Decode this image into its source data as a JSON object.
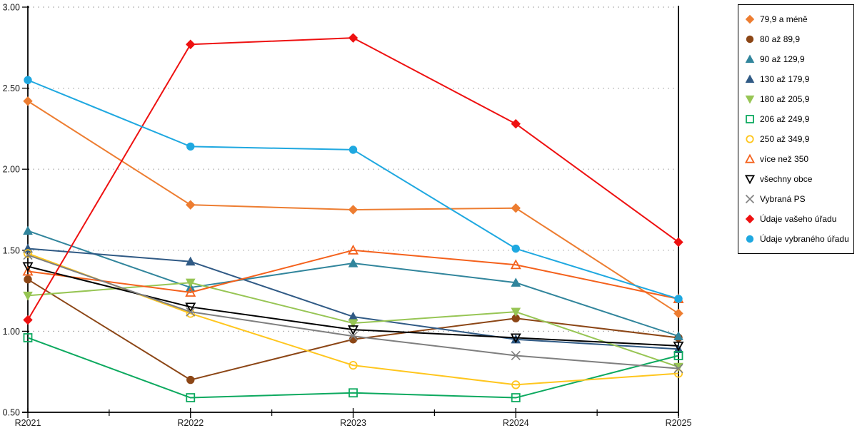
{
  "chart_data": {
    "type": "line",
    "title": "",
    "xlabel": "",
    "ylabel": "",
    "categories": [
      "R2021",
      "R2022",
      "R2023",
      "R2024",
      "R2025"
    ],
    "ylim": [
      0.5,
      3.0
    ],
    "ytick_step": 0.5,
    "ytick_labels": [
      "0.50",
      "1.00",
      "1.50",
      "2.00",
      "2.50",
      "3.00"
    ],
    "grid": "horizontal-dashed",
    "grid_color": "#b8b8b8",
    "axis_color": "#000000",
    "legend_position": "top-right",
    "series": [
      {
        "name": "79,9 a méně",
        "marker": "diamond",
        "style": "filled",
        "color": "#ED7D31",
        "values": [
          2.42,
          1.78,
          1.75,
          1.76,
          1.11
        ]
      },
      {
        "name": "80 až 89,9",
        "marker": "circle",
        "style": "filled",
        "color": "#8C4616",
        "values": [
          1.32,
          0.7,
          0.95,
          1.08,
          0.96
        ]
      },
      {
        "name": "90 až 129,9",
        "marker": "triangle-up",
        "style": "filled",
        "color": "#31859C",
        "values": [
          1.62,
          1.27,
          1.42,
          1.3,
          0.97
        ]
      },
      {
        "name": "130 až 179,9",
        "marker": "triangle-up",
        "style": "filled",
        "color": "#305A85",
        "values": [
          1.51,
          1.43,
          1.09,
          0.95,
          0.89
        ]
      },
      {
        "name": "180 až 205,9",
        "marker": "triangle-down",
        "style": "filled",
        "color": "#97C554",
        "values": [
          1.22,
          1.3,
          1.05,
          1.12,
          0.78
        ]
      },
      {
        "name": "206 až 249,9",
        "marker": "square",
        "style": "open",
        "color": "#0CA95F",
        "values": [
          0.96,
          0.59,
          0.62,
          0.59,
          0.85
        ]
      },
      {
        "name": "250 až 349,9",
        "marker": "circle",
        "style": "open",
        "color": "#FFC61E",
        "values": [
          1.48,
          1.11,
          0.79,
          0.67,
          0.74
        ]
      },
      {
        "name": "více než 350",
        "marker": "triangle-up",
        "style": "open",
        "color": "#F4611C",
        "values": [
          1.37,
          1.24,
          1.5,
          1.41,
          1.2
        ]
      },
      {
        "name": "všechny obce",
        "marker": "triangle-down",
        "style": "open",
        "color": "#000000",
        "values": [
          1.4,
          1.15,
          1.01,
          0.96,
          0.91
        ]
      },
      {
        "name": "Vybraná PS",
        "marker": "x",
        "style": "open",
        "color": "#7F7F7F",
        "values": [
          1.47,
          1.12,
          0.97,
          0.85,
          0.77
        ]
      },
      {
        "name": "Údaje vašeho úřadu",
        "marker": "diamond",
        "style": "filled",
        "color": "#EE1111",
        "values": [
          1.07,
          2.77,
          2.81,
          2.28,
          1.55
        ]
      },
      {
        "name": "Údaje vybraného úřadu",
        "marker": "circle",
        "style": "filled",
        "color": "#1FA8E0",
        "values": [
          2.55,
          2.14,
          2.12,
          1.51,
          1.2
        ]
      }
    ]
  }
}
